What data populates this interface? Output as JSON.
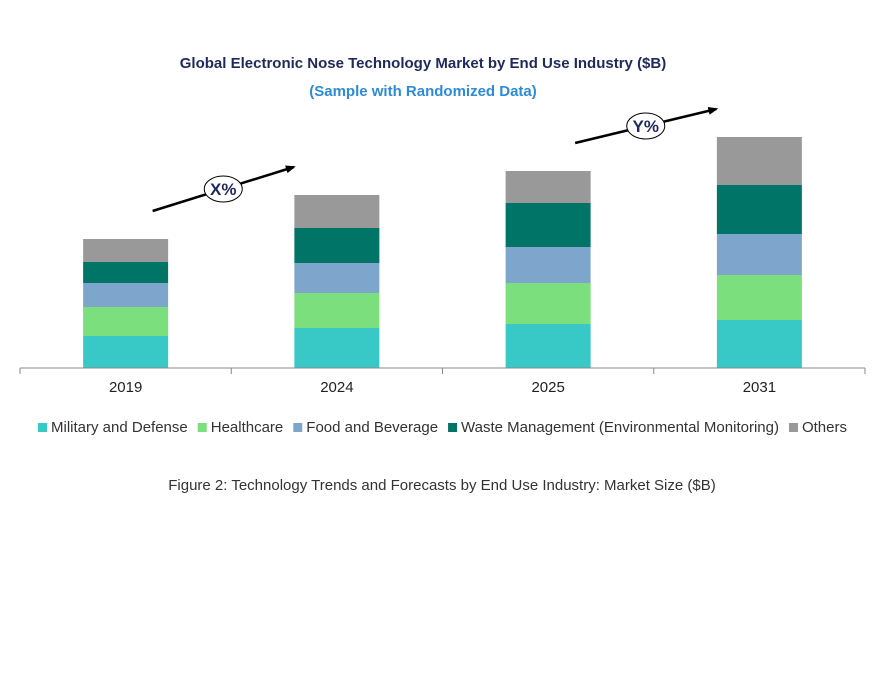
{
  "chart_data": {
    "type": "bar",
    "stacked": true,
    "title": "Global Electronic Nose Technology Market by End Use Industry ($B)",
    "subtitle": "(Sample with Randomized Data)",
    "categories": [
      "2019",
      "2024",
      "2025",
      "2031"
    ],
    "series": [
      {
        "name": "Military and Defense",
        "color": "#38c9c7",
        "values": [
          32,
          40,
          44,
          48
        ]
      },
      {
        "name": "Healthcare",
        "color": "#7adf7c",
        "values": [
          29,
          35,
          41,
          45
        ]
      },
      {
        "name": "Food and Beverage",
        "color": "#7ea6cc",
        "values": [
          24,
          30,
          36,
          41
        ]
      },
      {
        "name": "Waste Management (Environmental Monitoring)",
        "color": "#007467",
        "values": [
          21,
          35,
          44,
          49
        ]
      },
      {
        "name": "Others",
        "color": "#999999",
        "values": [
          23,
          33,
          32,
          48
        ]
      }
    ],
    "ylim": [
      0,
      240
    ],
    "grid": false,
    "legend": "bottom",
    "annotations": [
      {
        "label": "X%",
        "from": "2019",
        "to": "2024"
      },
      {
        "label": "Y%",
        "from": "2025",
        "to": "2031"
      }
    ]
  },
  "caption": "Figure 2: Technology  Trends  and Forecasts by  End Use Industry:  Market Size ($B)"
}
